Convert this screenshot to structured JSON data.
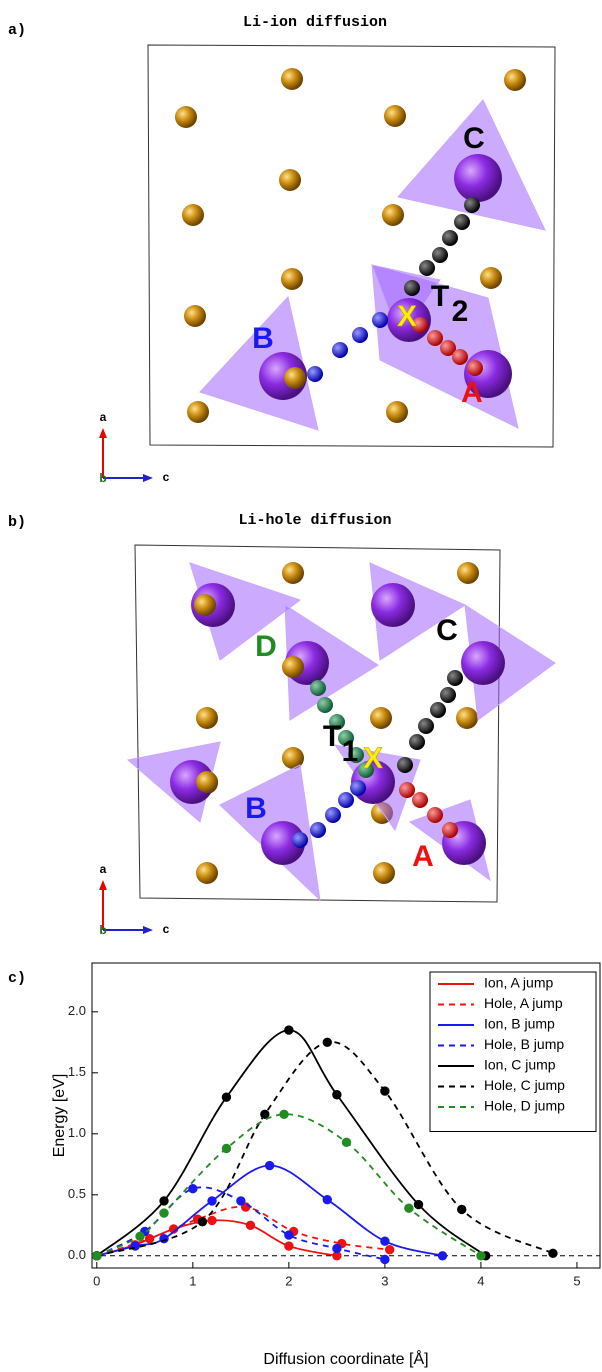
{
  "panel_a": {
    "label": "a)",
    "title": "Li-ion diffusion",
    "sites": {
      "C": "C",
      "X": "X",
      "T": "T",
      "sub": "2",
      "B": "B",
      "A": "A"
    },
    "axes": {
      "a": "a",
      "b": "b",
      "c": "c"
    }
  },
  "panel_b": {
    "label": "b)",
    "title": "Li-hole diffusion",
    "sites": {
      "D": "D",
      "C": "C",
      "T": "T",
      "sub": "1",
      "X": "X",
      "B": "B",
      "A": "A"
    },
    "axes": {
      "a": "a",
      "b": "b",
      "c": "c"
    }
  },
  "panel_c_label": "c)",
  "chart_data": {
    "type": "line",
    "x_label": "Diffusion coordinate [Å]",
    "y_label": "Energy [eV]",
    "xlim": [
      -0.05,
      5.24
    ],
    "ylim": [
      -0.1,
      2.4
    ],
    "xticks": [
      0,
      1,
      2,
      3,
      4,
      5
    ],
    "yticks": [
      {
        "value": 0,
        "label": "0.0"
      },
      0.5,
      {
        "value": 1,
        "label": "1.0"
      },
      1.5,
      {
        "value": 2,
        "label": "2.0"
      }
    ],
    "legend": "upper right",
    "zero_line": true,
    "series": [
      {
        "name": "Ion, A jump",
        "color": "#ee1111",
        "linestyle": "solid",
        "x": [
          0,
          0.4,
          0.8,
          1.2,
          1.6,
          2.0,
          2.5
        ],
        "values": [
          0,
          0.09,
          0.22,
          0.29,
          0.25,
          0.08,
          0
        ]
      },
      {
        "name": "Hole, A jump",
        "color": "#ee1111",
        "linestyle": "dashed",
        "x": [
          0,
          0.55,
          1.05,
          1.55,
          2.05,
          2.55,
          3.05
        ],
        "values": [
          0,
          0.14,
          0.3,
          0.4,
          0.2,
          0.1,
          0.05
        ]
      },
      {
        "name": "Ion, B jump",
        "color": "#1a1aee",
        "linestyle": "solid",
        "x": [
          0,
          0.4,
          0.7,
          1.2,
          1.8,
          2.4,
          3.0,
          3.6
        ],
        "values": [
          0,
          0.08,
          0.14,
          0.45,
          0.74,
          0.46,
          0.12,
          0
        ]
      },
      {
        "name": "Hole, B jump",
        "color": "#1a1aee",
        "linestyle": "dashed",
        "x": [
          0,
          0.5,
          1.0,
          1.5,
          2.0,
          2.5,
          3.0
        ],
        "values": [
          0,
          0.2,
          0.55,
          0.45,
          0.17,
          0.06,
          -0.03
        ]
      },
      {
        "name": "Ion, C jump",
        "color": "#000000",
        "linestyle": "solid",
        "x": [
          0,
          0.7,
          1.35,
          2.0,
          2.5,
          3.35,
          4.05
        ],
        "values": [
          0,
          0.45,
          1.3,
          1.85,
          1.32,
          0.42,
          0
        ]
      },
      {
        "name": "Hole, C jump",
        "color": "#000000",
        "linestyle": "dashed",
        "x": [
          0,
          1.1,
          1.75,
          2.4,
          3.0,
          3.8,
          4.75
        ],
        "values": [
          0,
          0.28,
          1.16,
          1.75,
          1.35,
          0.38,
          0.02
        ]
      },
      {
        "name": "Hole, D jump",
        "color": "#228b22",
        "linestyle": "dashed",
        "x": [
          0,
          0.45,
          0.7,
          1.35,
          1.95,
          2.6,
          3.25,
          4.0
        ],
        "values": [
          0,
          0.16,
          0.35,
          0.88,
          1.16,
          0.93,
          0.39,
          0
        ]
      }
    ]
  }
}
